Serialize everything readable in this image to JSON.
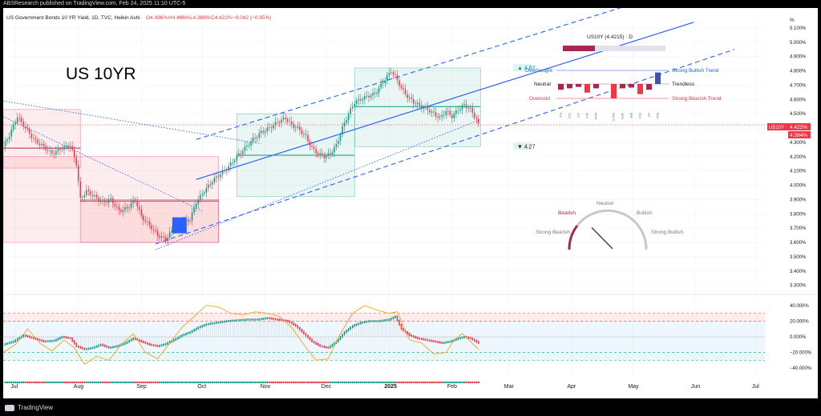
{
  "header": {
    "published": "ABSResearch published on TradingView.com, Feb 24, 2025 11:10 UTC-5"
  },
  "footer": {
    "brand": "TradingView"
  },
  "chart_data": {
    "type": "candlestick",
    "symbol_line": "US Government Bonds 10 YR Yield, 1D, TVC, Heikin Ashi",
    "ohlc_line": {
      "o": "O4.496%",
      "h": "H4.496%",
      "l": "L4.389%",
      "c": "C4.422%",
      "chg": "−0.042 (−0.95%)"
    },
    "big_title": "US 10YR",
    "y_unit": "%",
    "y_ticks": [
      "5.100%",
      "5.000%",
      "4.900%",
      "4.800%",
      "4.700%",
      "4.600%",
      "4.500%",
      "4.400%",
      "4.300%",
      "4.200%",
      "4.100%",
      "4.000%",
      "3.900%",
      "3.800%",
      "3.700%",
      "3.600%",
      "3.500%",
      "3.400%",
      "3.300%"
    ],
    "y_tick_values": [
      5.1,
      5.0,
      4.9,
      4.8,
      4.7,
      4.6,
      4.5,
      4.4,
      4.3,
      4.2,
      4.1,
      4.0,
      3.9,
      3.8,
      3.7,
      3.6,
      3.5,
      3.4,
      3.3
    ],
    "ylim": [
      3.27,
      5.15
    ],
    "x_ticks": [
      "Jul",
      "Aug",
      "Sep",
      "Oct",
      "Nov",
      "Dec",
      "2025",
      "Feb",
      "Mar",
      "Apr",
      "May",
      "Jun",
      "Jul"
    ],
    "x_tick_days": [
      6,
      37,
      68,
      98,
      129,
      159,
      190,
      221,
      249,
      280,
      310,
      341,
      371
    ],
    "xlim": [
      0,
      375
    ],
    "price_tag_1": "4.422%",
    "price_tag_2": "4.394%",
    "price_label": "US10Y",
    "last_close": 4.422,
    "anchors": [
      [
        0,
        4.27
      ],
      [
        3,
        4.35
      ],
      [
        7,
        4.48
      ],
      [
        11,
        4.4
      ],
      [
        15,
        4.32
      ],
      [
        19,
        4.28
      ],
      [
        24,
        4.22
      ],
      [
        29,
        4.26
      ],
      [
        33,
        4.28
      ],
      [
        36,
        4.15
      ],
      [
        38,
        3.9
      ],
      [
        41,
        3.96
      ],
      [
        45,
        3.92
      ],
      [
        49,
        3.88
      ],
      [
        53,
        3.9
      ],
      [
        57,
        3.82
      ],
      [
        61,
        3.84
      ],
      [
        65,
        3.9
      ],
      [
        68,
        3.78
      ],
      [
        72,
        3.72
      ],
      [
        76,
        3.65
      ],
      [
        80,
        3.62
      ],
      [
        84,
        3.7
      ],
      [
        88,
        3.74
      ],
      [
        92,
        3.76
      ],
      [
        95,
        3.88
      ],
      [
        99,
        3.96
      ],
      [
        103,
        4.03
      ],
      [
        107,
        4.08
      ],
      [
        111,
        4.13
      ],
      [
        115,
        4.2
      ],
      [
        119,
        4.26
      ],
      [
        123,
        4.32
      ],
      [
        127,
        4.37
      ],
      [
        131,
        4.4
      ],
      [
        135,
        4.44
      ],
      [
        139,
        4.47
      ],
      [
        142,
        4.42
      ],
      [
        145,
        4.4
      ],
      [
        149,
        4.34
      ],
      [
        152,
        4.26
      ],
      [
        155,
        4.22
      ],
      [
        158,
        4.2
      ],
      [
        161,
        4.22
      ],
      [
        164,
        4.28
      ],
      [
        167,
        4.4
      ],
      [
        170,
        4.5
      ],
      [
        173,
        4.58
      ],
      [
        176,
        4.6
      ],
      [
        179,
        4.62
      ],
      [
        183,
        4.64
      ],
      [
        186,
        4.7
      ],
      [
        189,
        4.76
      ],
      [
        191,
        4.8
      ],
      [
        193,
        4.76
      ],
      [
        196,
        4.68
      ],
      [
        199,
        4.62
      ],
      [
        202,
        4.58
      ],
      [
        206,
        4.55
      ],
      [
        209,
        4.53
      ],
      [
        212,
        4.5
      ],
      [
        215,
        4.47
      ],
      [
        218,
        4.52
      ],
      [
        221,
        4.48
      ],
      [
        224,
        4.53
      ],
      [
        227,
        4.56
      ],
      [
        230,
        4.53
      ],
      [
        233,
        4.46
      ],
      [
        234,
        4.42
      ]
    ],
    "boxes_red": [
      {
        "x0": 0,
        "x1": 38,
        "y0": 4.12,
        "y1": 4.53,
        "mid": 4.26
      },
      {
        "x0": 38,
        "x1": 106,
        "y0": 3.6,
        "y1": 3.9,
        "mid": 3.89
      },
      {
        "x0": 0,
        "x1": 106,
        "y0": 3.6,
        "y1": 4.2
      }
    ],
    "boxes_green": [
      {
        "x0": 115,
        "x1": 173,
        "y0": 3.92,
        "y1": 4.5,
        "mid": 4.21
      },
      {
        "x0": 173,
        "x1": 235,
        "y0": 4.27,
        "y1": 4.82,
        "mid": 4.55
      }
    ],
    "channel": {
      "mid": [
        [
          95,
          4.04
        ],
        [
          340,
          5.14
        ]
      ],
      "upper": [
        [
          95,
          4.32
        ],
        [
          340,
          5.4
        ]
      ],
      "lower": [
        [
          75,
          3.59
        ],
        [
          360,
          4.95
        ]
      ]
    },
    "dotted_lines": [
      [
        [
          0,
          4.59
        ],
        [
          127,
          4.29
        ]
      ],
      [
        [
          0,
          4.48
        ],
        [
          98,
          3.82
        ]
      ],
      [
        [
          75,
          3.55
        ],
        [
          235,
          4.46
        ]
      ]
    ],
    "blue_marker": {
      "x": 86,
      "y": 3.72
    },
    "range_labels": {
      "high": "4.82",
      "low": "4.27"
    },
    "range_values": {
      "high": 4.82,
      "low": 4.27
    },
    "trend_panel": {
      "title": "US10Y (4.4215) · D",
      "rows": [
        "Overbought",
        "Neutral",
        "Oversold"
      ],
      "right_labels": [
        "Strong Bullish Trend",
        "Trendless",
        "Strong Bearish Trend"
      ],
      "bar_values": [
        -0.4,
        -0.3,
        -0.2,
        -0.6,
        -0.3,
        0,
        -1.0,
        -0.3,
        -0.25,
        -0.7,
        -0.4,
        0.8
      ],
      "indicator_labels": [
        "RSI",
        "STO",
        "CCI",
        "ADX",
        "MOM",
        "",
        "MACD",
        "WPR",
        "BBP",
        "ROC",
        "UO",
        "EMA"
      ]
    },
    "gauge": {
      "labels": [
        "Strong Bearish",
        "Bearish",
        "Neutral",
        "Bullish",
        "Strong Bullish"
      ],
      "needle_value": -0.4
    },
    "oscillator": {
      "y_ticks": [
        "40.000%",
        "20.000%",
        "0.000%",
        "−20.000%",
        "−40.000%"
      ],
      "y_tick_values": [
        40,
        20,
        0,
        -20,
        -40
      ],
      "ylim": [
        -48,
        48
      ],
      "bands": {
        "ob_outer": 30,
        "ob_inner": 20,
        "os_inner": -20,
        "os_outer": -30
      },
      "anchors": [
        [
          0,
          -10
        ],
        [
          5,
          -6
        ],
        [
          10,
          2
        ],
        [
          15,
          -2
        ],
        [
          20,
          -6
        ],
        [
          25,
          -5
        ],
        [
          29,
          0
        ],
        [
          33,
          -2
        ],
        [
          36,
          -12
        ],
        [
          40,
          -16
        ],
        [
          44,
          -14
        ],
        [
          48,
          -10
        ],
        [
          52,
          -14
        ],
        [
          56,
          -12
        ],
        [
          60,
          -8
        ],
        [
          64,
          -2
        ],
        [
          68,
          -6
        ],
        [
          72,
          -10
        ],
        [
          76,
          -12
        ],
        [
          80,
          -9
        ],
        [
          84,
          -4
        ],
        [
          88,
          2
        ],
        [
          92,
          6
        ],
        [
          96,
          12
        ],
        [
          100,
          16
        ],
        [
          105,
          18
        ],
        [
          110,
          20
        ],
        [
          115,
          21
        ],
        [
          120,
          22
        ],
        [
          125,
          22
        ],
        [
          130,
          24
        ],
        [
          135,
          22
        ],
        [
          140,
          20
        ],
        [
          144,
          14
        ],
        [
          148,
          4
        ],
        [
          152,
          -6
        ],
        [
          156,
          -12
        ],
        [
          160,
          -14
        ],
        [
          164,
          -6
        ],
        [
          168,
          6
        ],
        [
          172,
          14
        ],
        [
          176,
          18
        ],
        [
          180,
          20
        ],
        [
          185,
          20
        ],
        [
          190,
          22
        ],
        [
          193,
          26
        ],
        [
          196,
          10
        ],
        [
          200,
          2
        ],
        [
          204,
          -2
        ],
        [
          208,
          -4
        ],
        [
          212,
          -6
        ],
        [
          216,
          -8
        ],
        [
          220,
          -6
        ],
        [
          224,
          -2
        ],
        [
          227,
          0
        ],
        [
          230,
          -2
        ],
        [
          234,
          -8
        ]
      ],
      "stoch": [
        [
          0,
          -20
        ],
        [
          6,
          -10
        ],
        [
          12,
          10
        ],
        [
          18,
          -8
        ],
        [
          24,
          -18
        ],
        [
          30,
          -4
        ],
        [
          35,
          -14
        ],
        [
          40,
          -35
        ],
        [
          46,
          -25
        ],
        [
          52,
          -30
        ],
        [
          58,
          -10
        ],
        [
          64,
          4
        ],
        [
          70,
          -20
        ],
        [
          76,
          -28
        ],
        [
          82,
          -8
        ],
        [
          88,
          12
        ],
        [
          94,
          26
        ],
        [
          100,
          40
        ],
        [
          106,
          38
        ],
        [
          112,
          30
        ],
        [
          118,
          28
        ],
        [
          124,
          32
        ],
        [
          130,
          30
        ],
        [
          136,
          26
        ],
        [
          142,
          12
        ],
        [
          148,
          -10
        ],
        [
          154,
          -30
        ],
        [
          160,
          -28
        ],
        [
          166,
          4
        ],
        [
          172,
          30
        ],
        [
          178,
          40
        ],
        [
          184,
          34
        ],
        [
          190,
          30
        ],
        [
          194,
          32
        ],
        [
          200,
          -4
        ],
        [
          206,
          -8
        ],
        [
          212,
          -22
        ],
        [
          218,
          -20
        ],
        [
          222,
          -4
        ],
        [
          226,
          4
        ],
        [
          230,
          -6
        ],
        [
          234,
          -16
        ]
      ]
    }
  }
}
